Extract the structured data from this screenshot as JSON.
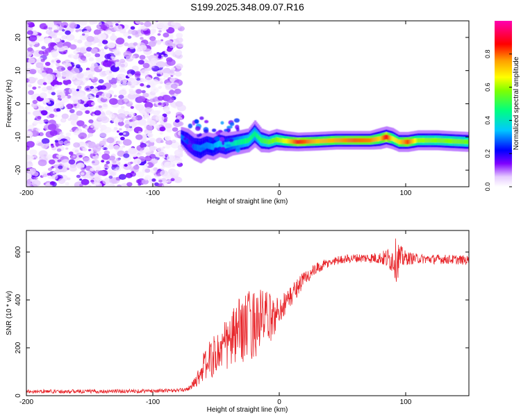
{
  "title": "S199.2025.348.09.07.R16",
  "colors": {
    "snr_line": "#e8262b",
    "frame": "#000000",
    "background": "#ffffff"
  },
  "chart_data": [
    {
      "type": "heatmap",
      "title": "S199.2025.348.09.07.R16",
      "xlabel": "Height of straight line (km)",
      "ylabel": "Frequency (Hz)",
      "xlim": [
        -200,
        150
      ],
      "ylim": [
        -25,
        25
      ],
      "xticks": [
        -200,
        -100,
        0,
        100
      ],
      "yticks": [
        -20,
        -10,
        0,
        10,
        20
      ],
      "colorbar": {
        "label": "Normalized spectral amplitude",
        "range": [
          0,
          1
        ],
        "ticks": [
          0.0,
          0.2,
          0.4,
          0.6,
          0.8
        ],
        "tick_labels": [
          "0.0",
          "0.2",
          "0.4",
          "0.6",
          "0.8"
        ],
        "colormap": [
          "#ffffff",
          "#7f00ff",
          "#0000ff",
          "#00c8ff",
          "#00ff80",
          "#c8ff00",
          "#ffa000",
          "#ff0000",
          "#ff00b0"
        ]
      },
      "noise_region": {
        "x_range": [
          -200,
          -77
        ],
        "freq_range": [
          -25,
          25
        ],
        "amplitude_range": [
          0.02,
          0.18
        ]
      },
      "signal_ridge": [
        {
          "x": -77,
          "freq": -10.0,
          "width_hz": 1.5,
          "amplitude": 0.3
        },
        {
          "x": -72,
          "freq": -11.5,
          "width_hz": 2.0,
          "amplitude": 0.25
        },
        {
          "x": -67,
          "freq": -13.0,
          "width_hz": 2.0,
          "amplitude": 0.28
        },
        {
          "x": -62,
          "freq": -13.5,
          "width_hz": 2.2,
          "amplitude": 0.3
        },
        {
          "x": -57,
          "freq": -12.5,
          "width_hz": 2.0,
          "amplitude": 0.3
        },
        {
          "x": -52,
          "freq": -13.0,
          "width_hz": 2.0,
          "amplitude": 0.32
        },
        {
          "x": -47,
          "freq": -12.0,
          "width_hz": 2.0,
          "amplitude": 0.35
        },
        {
          "x": -42,
          "freq": -12.5,
          "width_hz": 2.0,
          "amplitude": 0.35
        },
        {
          "x": -37,
          "freq": -12.0,
          "width_hz": 1.8,
          "amplitude": 0.4
        },
        {
          "x": -30,
          "freq": -11.5,
          "width_hz": 1.8,
          "amplitude": 0.45
        },
        {
          "x": -24,
          "freq": -11.0,
          "width_hz": 1.8,
          "amplitude": 0.48
        },
        {
          "x": -19,
          "freq": -9.0,
          "width_hz": 2.0,
          "amplitude": 0.45
        },
        {
          "x": -14,
          "freq": -11.0,
          "width_hz": 1.8,
          "amplitude": 0.5
        },
        {
          "x": -8,
          "freq": -11.5,
          "width_hz": 1.6,
          "amplitude": 0.55
        },
        {
          "x": -2,
          "freq": -10.8,
          "width_hz": 1.6,
          "amplitude": 0.58
        },
        {
          "x": 5,
          "freq": -11.2,
          "width_hz": 1.5,
          "amplitude": 0.65
        },
        {
          "x": 15,
          "freq": -11.5,
          "width_hz": 1.4,
          "amplitude": 0.85
        },
        {
          "x": 30,
          "freq": -11.3,
          "width_hz": 1.4,
          "amplitude": 0.72
        },
        {
          "x": 45,
          "freq": -11.0,
          "width_hz": 1.4,
          "amplitude": 0.75
        },
        {
          "x": 60,
          "freq": -11.0,
          "width_hz": 1.4,
          "amplitude": 0.8
        },
        {
          "x": 72,
          "freq": -11.0,
          "width_hz": 1.4,
          "amplitude": 0.78
        },
        {
          "x": 80,
          "freq": -10.5,
          "width_hz": 1.6,
          "amplitude": 0.7
        },
        {
          "x": 85,
          "freq": -10.0,
          "width_hz": 1.6,
          "amplitude": 0.88
        },
        {
          "x": 90,
          "freq": -10.5,
          "width_hz": 1.6,
          "amplitude": 0.65
        },
        {
          "x": 95,
          "freq": -11.5,
          "width_hz": 1.5,
          "amplitude": 0.7
        },
        {
          "x": 102,
          "freq": -11.5,
          "width_hz": 1.5,
          "amplitude": 0.82
        },
        {
          "x": 110,
          "freq": -11.0,
          "width_hz": 1.5,
          "amplitude": 0.6
        },
        {
          "x": 125,
          "freq": -11.0,
          "width_hz": 1.5,
          "amplitude": 0.58
        },
        {
          "x": 140,
          "freq": -11.3,
          "width_hz": 1.5,
          "amplitude": 0.58
        },
        {
          "x": 150,
          "freq": -11.5,
          "width_hz": 1.5,
          "amplitude": 0.55
        }
      ]
    },
    {
      "type": "line",
      "xlabel": "Height of straight line (km)",
      "ylabel": "SNR (10 * v/v)",
      "xlim": [
        -200,
        150
      ],
      "ylim": [
        0,
        690
      ],
      "xticks": [
        -200,
        -100,
        0,
        100
      ],
      "yticks": [
        0,
        200,
        400,
        600
      ],
      "series": [
        {
          "name": "SNR",
          "color": "#e8262b",
          "x": [
            -200,
            -150,
            -100,
            -80,
            -75,
            -70,
            -65,
            -60,
            -55,
            -50,
            -45,
            -40,
            -35,
            -30,
            -25,
            -20,
            -15,
            -10,
            -5,
            0,
            5,
            10,
            15,
            20,
            25,
            30,
            35,
            40,
            45,
            50,
            55,
            60,
            70,
            80,
            90,
            93,
            95,
            100,
            110,
            120,
            130,
            140,
            150
          ],
          "values": [
            18,
            18,
            20,
            22,
            25,
            35,
            70,
            120,
            150,
            170,
            200,
            220,
            250,
            280,
            290,
            300,
            320,
            330,
            320,
            360,
            390,
            420,
            460,
            490,
            510,
            530,
            545,
            555,
            565,
            570,
            572,
            575,
            575,
            575,
            570,
            570,
            575,
            575,
            572,
            570,
            570,
            568,
            565
          ],
          "noise_amplitude": [
            8,
            8,
            8,
            8,
            8,
            10,
            30,
            60,
            80,
            90,
            100,
            120,
            130,
            140,
            150,
            150,
            130,
            110,
            90,
            60,
            50,
            45,
            40,
            35,
            30,
            25,
            22,
            20,
            18,
            18,
            18,
            18,
            20,
            25,
            60,
            100,
            60,
            30,
            20,
            20,
            20,
            20,
            20
          ]
        }
      ]
    }
  ]
}
